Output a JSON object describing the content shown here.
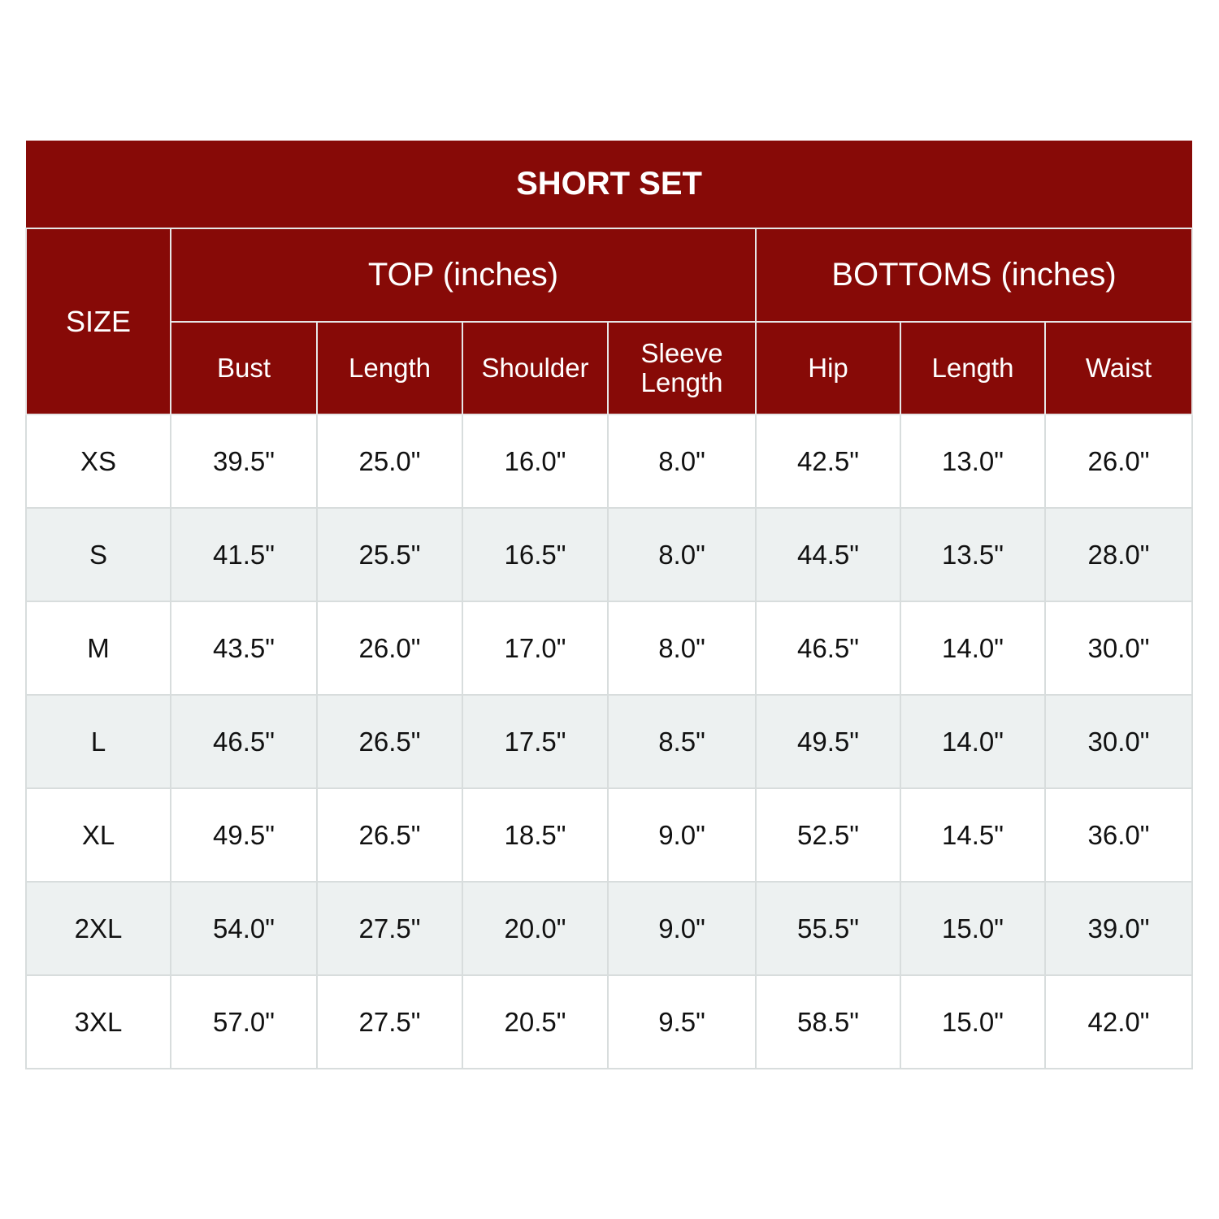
{
  "title": "SHORT SET",
  "size_header": "SIZE",
  "groups": {
    "top": "TOP (inches)",
    "bottoms": "BOTTOMS (inches)"
  },
  "columns": [
    "Bust",
    "Length",
    "Shoulder",
    "Sleeve Length",
    "Hip",
    "Length",
    "Waist"
  ],
  "colors": {
    "header_bg": "#870a07",
    "alt_row_bg": "#edf1f1"
  },
  "rows": [
    {
      "size": "XS",
      "values": [
        "39.5\"",
        "25.0\"",
        "16.0\"",
        "8.0\"",
        "42.5\"",
        "13.0\"",
        "26.0\""
      ]
    },
    {
      "size": "S",
      "values": [
        "41.5\"",
        "25.5\"",
        "16.5\"",
        "8.0\"",
        "44.5\"",
        "13.5\"",
        "28.0\""
      ]
    },
    {
      "size": "M",
      "values": [
        "43.5\"",
        "26.0\"",
        "17.0\"",
        "8.0\"",
        "46.5\"",
        "14.0\"",
        "30.0\""
      ]
    },
    {
      "size": "L",
      "values": [
        "46.5\"",
        "26.5\"",
        "17.5\"",
        "8.5\"",
        "49.5\"",
        "14.0\"",
        "30.0\""
      ]
    },
    {
      "size": "XL",
      "values": [
        "49.5\"",
        "26.5\"",
        "18.5\"",
        "9.0\"",
        "52.5\"",
        "14.5\"",
        "36.0\""
      ]
    },
    {
      "size": "2XL",
      "values": [
        "54.0\"",
        "27.5\"",
        "20.0\"",
        "9.0\"",
        "55.5\"",
        "15.0\"",
        "39.0\""
      ]
    },
    {
      "size": "3XL",
      "values": [
        "57.0\"",
        "27.5\"",
        "20.5\"",
        "9.5\"",
        "58.5\"",
        "15.0\"",
        "42.0\""
      ]
    }
  ]
}
